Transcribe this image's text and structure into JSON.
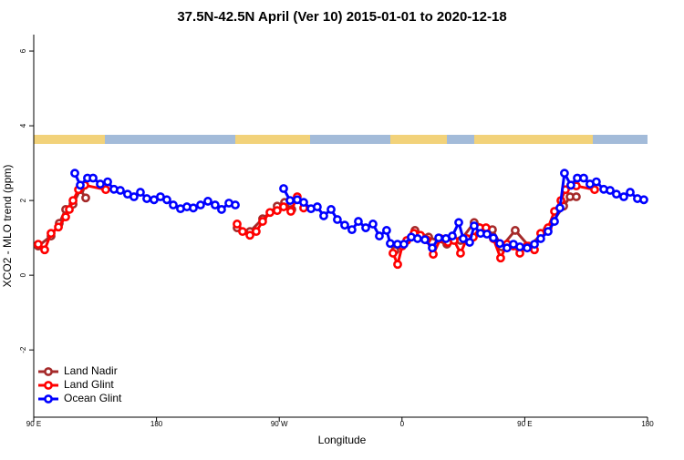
{
  "chart_data": {
    "type": "line",
    "title": "37.5N-42.5N April (Ver 10)   2015-01-01 to 2020-12-18",
    "x_label": "Longitude",
    "y_label": "XCO2 - MLO trend (ppm)",
    "xlim": [
      90,
      540
    ],
    "ylim": [
      -3.8,
      6.44
    ],
    "xticks": [
      {
        "value": 90,
        "label": "90 E"
      },
      180,
      {
        "value": 270,
        "label": "90 W"
      },
      {
        "value": 360,
        "label": "0"
      },
      {
        "value": 450,
        "label": "90 E"
      },
      {
        "value": 540,
        "label": "180"
      }
    ],
    "yticks": [
      -2,
      0,
      2,
      4,
      6
    ],
    "legend": "bottomleft",
    "series": [
      {
        "name": "Land Nadir",
        "color": "#a52a2a",
        "x": [
          93.3,
          102.7,
          108.7,
          113.4,
          118.8,
          124.1,
          128.1,
          null,
          239.1,
          248.5,
          257.8,
          268.5,
          273.9,
          279.2,
          null,
          354.8,
          369.5,
          379.5,
          392.9,
          402.9,
          412.9,
          426.3,
          433.0,
          443.0,
          453.0,
          466.4,
          478.5,
          483.2,
          487.8
        ],
        "values": [
          0.78,
          1.05,
          1.39,
          1.76,
          1.9,
          2.29,
          2.07,
          null,
          1.27,
          1.17,
          1.51,
          1.85,
          1.95,
          1.76,
          null,
          0.66,
          1.2,
          1.02,
          0.83,
          0.93,
          1.41,
          1.22,
          0.76,
          1.2,
          0.78,
          1.22,
          1.85,
          2.1,
          2.1
        ]
      },
      {
        "name": "Land Glint",
        "color": "#ff0000",
        "x": [
          93.3,
          98.0,
          102.7,
          108.1,
          113.4,
          116.1,
          118.8,
          122.8,
          127.4,
          142.8,
          null,
          239.1,
          243.1,
          248.5,
          253.1,
          257.8,
          263.2,
          268.5,
          273.2,
          278.5,
          283.2,
          287.9,
          null,
          353.4,
          356.8,
          360.1,
          363.5,
          368.8,
          373.5,
          378.2,
          382.9,
          388.2,
          393.6,
          398.2,
          402.9,
          407.6,
          412.3,
          417.0,
          421.6,
          427.0,
          432.3,
          437.0,
          441.7,
          446.4,
          451.7,
          457.1,
          461.7,
          467.1,
          471.8,
          476.5,
          479.8,
          483.8,
          487.8,
          501.2
        ],
        "values": [
          0.83,
          0.68,
          1.12,
          1.29,
          1.56,
          1.76,
          2.0,
          2.29,
          2.41,
          2.29,
          null,
          1.37,
          1.17,
          1.07,
          1.17,
          1.44,
          1.68,
          1.73,
          1.83,
          1.71,
          2.1,
          1.8,
          null,
          0.59,
          0.29,
          0.78,
          0.93,
          1.12,
          1.07,
          0.95,
          0.56,
          0.98,
          0.88,
          0.93,
          0.59,
          0.98,
          1.02,
          1.27,
          1.27,
          0.98,
          0.46,
          0.83,
          0.78,
          0.59,
          0.78,
          0.68,
          1.12,
          1.27,
          1.71,
          2.0,
          2.29,
          2.41,
          2.39,
          2.29
        ]
      },
      {
        "name": "Ocean Glint",
        "color": "#0000ff",
        "x": [
          120.1,
          124.1,
          129.4,
          133.5,
          138.8,
          144.2,
          148.8,
          153.5,
          158.8,
          163.5,
          168.2,
          172.9,
          178.2,
          182.9,
          187.6,
          192.3,
          197.6,
          202.3,
          207.0,
          212.3,
          217.7,
          223.0,
          227.7,
          233.1,
          237.8,
          null,
          273.2,
          277.9,
          283.2,
          287.9,
          293.3,
          297.9,
          302.6,
          308.0,
          312.6,
          318.0,
          323.3,
          328.0,
          333.4,
          338.7,
          343.4,
          348.7,
          351.4,
          356.7,
          361.4,
          366.8,
          371.4,
          376.8,
          382.2,
          386.9,
          392.2,
          396.9,
          401.6,
          404.9,
          409.6,
          412.9,
          417.6,
          422.3,
          427.0,
          431.7,
          437.0,
          441.7,
          446.4,
          451.8,
          457.1,
          461.7,
          467.1,
          471.8,
          475.8,
          479.1,
          483.8,
          488.5,
          493.2,
          497.8,
          502.5,
          507.9,
          512.6,
          517.2,
          522.6,
          527.3,
          532.6,
          537.3
        ],
        "values": [
          2.73,
          2.41,
          2.6,
          2.6,
          2.44,
          2.5,
          2.3,
          2.27,
          2.17,
          2.1,
          2.22,
          2.05,
          2.02,
          2.1,
          2.02,
          1.88,
          1.78,
          1.83,
          1.8,
          1.88,
          1.98,
          1.88,
          1.76,
          1.93,
          1.88,
          null,
          2.32,
          2.0,
          2.02,
          1.95,
          1.78,
          1.83,
          1.59,
          1.76,
          1.49,
          1.34,
          1.22,
          1.44,
          1.27,
          1.37,
          1.05,
          1.2,
          0.85,
          0.83,
          0.83,
          1.02,
          0.98,
          0.95,
          0.73,
          1.0,
          0.98,
          1.05,
          1.41,
          0.98,
          0.88,
          1.32,
          1.12,
          1.1,
          1.0,
          0.85,
          0.73,
          0.83,
          0.76,
          0.73,
          0.83,
          0.98,
          1.17,
          1.44,
          1.8,
          2.73,
          2.41,
          2.6,
          2.6,
          2.44,
          2.5,
          2.3,
          2.27,
          2.17,
          2.1,
          2.22,
          2.05,
          2.02
        ]
      }
    ]
  }
}
